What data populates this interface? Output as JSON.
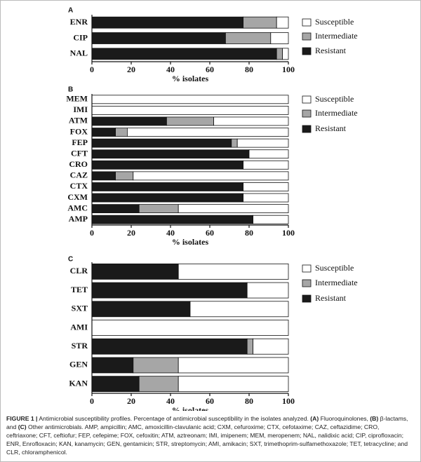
{
  "chart_data": [
    {
      "type": "stacked_barh",
      "panel": "A",
      "xlabel": "% isolates",
      "categories": [
        "ENR",
        "CIP",
        "NAL"
      ],
      "series": [
        {
          "name": "Susceptible",
          "color": "#ffffff",
          "values": [
            6,
            9,
            3
          ]
        },
        {
          "name": "Intermediate",
          "color": "#a6a6a6",
          "values": [
            17,
            23,
            3
          ]
        },
        {
          "name": "Resistant",
          "color": "#1a1a1a",
          "values": [
            77,
            68,
            94
          ]
        }
      ],
      "xlim": [
        0,
        100
      ],
      "xticks": [
        0,
        20,
        40,
        60,
        80,
        100
      ]
    },
    {
      "type": "stacked_barh",
      "panel": "B",
      "xlabel": "% isolates",
      "categories": [
        "MEM",
        "IMI",
        "ATM",
        "FOX",
        "FEP",
        "CFT",
        "CRO",
        "CAZ",
        "CTX",
        "CXM",
        "AMC",
        "AMP"
      ],
      "series": [
        {
          "name": "Susceptible",
          "color": "#ffffff",
          "values": [
            100,
            100,
            38,
            82,
            26,
            20,
            23,
            79,
            23,
            23,
            56,
            18
          ]
        },
        {
          "name": "Intermediate",
          "color": "#a6a6a6",
          "values": [
            0,
            0,
            24,
            6,
            3,
            0,
            0,
            9,
            0,
            0,
            20,
            0
          ]
        },
        {
          "name": "Resistant",
          "color": "#1a1a1a",
          "values": [
            0,
            0,
            38,
            12,
            71,
            80,
            77,
            12,
            77,
            77,
            24,
            82
          ]
        }
      ],
      "xlim": [
        0,
        100
      ],
      "xticks": [
        0,
        20,
        40,
        60,
        80,
        100
      ]
    },
    {
      "type": "stacked_barh",
      "panel": "C",
      "xlabel": "% isolates",
      "categories": [
        "CLR",
        "TET",
        "SXT",
        "AMI",
        "STR",
        "GEN",
        "KAN"
      ],
      "series": [
        {
          "name": "Susceptible",
          "color": "#ffffff",
          "values": [
            56,
            21,
            50,
            100,
            18,
            56,
            56
          ]
        },
        {
          "name": "Intermediate",
          "color": "#a6a6a6",
          "values": [
            0,
            0,
            0,
            0,
            3,
            23,
            20
          ]
        },
        {
          "name": "Resistant",
          "color": "#1a1a1a",
          "values": [
            44,
            79,
            50,
            0,
            79,
            21,
            24
          ]
        }
      ],
      "xlim": [
        0,
        100
      ],
      "xticks": [
        0,
        20,
        40,
        60,
        80,
        100
      ]
    }
  ],
  "caption": {
    "label": "FIGURE 1 |",
    "parts": [
      " Antimicrobial susceptibility profiles. Percentage of antimicrobial susceptibility in the isolates analyzed. ",
      "(A)",
      " Fluoroquinolones, ",
      "(B)",
      " β-lactams, and ",
      "(C)",
      " Other antimicrobials. AMP, ampicillin; AMC, amoxicillin-clavulanic acid; CXM, cefuroxime; CTX, cefotaxime; CAZ, ceftazidime; CRO, ceftriaxone; CFT, ceftiofur; FEP, cefepime; FOX, cefoxitin; ATM, aztreonam; IMI, imipenem; MEM, meropenem; NAL, nalidixic acid; CIP, ciprofloxacin; ENR, Enrofloxacin; KAN, kanamycin; GEN, gentamicin; STR, streptomycin; AMI, amikacin; SXT, trimethoprim-sulfamethoxazole; TET, tetracycline; and CLR, chloramphenicol."
    ]
  }
}
